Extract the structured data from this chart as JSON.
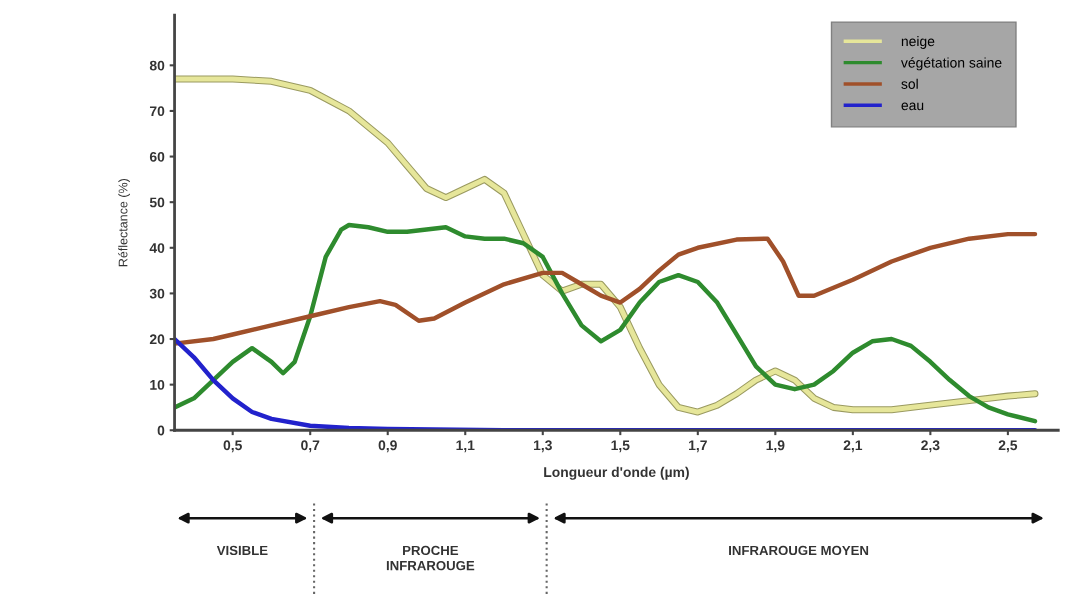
{
  "chart_data": {
    "type": "line",
    "xlabel": "Longueur d'onde (µm)",
    "ylabel": "Réflectance (%)",
    "xlim": [
      0.35,
      2.63
    ],
    "ylim": [
      0,
      91
    ],
    "xticks": [
      {
        "value": 0.5,
        "label": "0,5"
      },
      {
        "value": 0.7,
        "label": "0,7"
      },
      {
        "value": 0.9,
        "label": "0,9"
      },
      {
        "value": 1.1,
        "label": "1,1"
      },
      {
        "value": 1.3,
        "label": "1,3"
      },
      {
        "value": 1.5,
        "label": "1,5"
      },
      {
        "value": 1.7,
        "label": "1,7"
      },
      {
        "value": 1.9,
        "label": "1,9"
      },
      {
        "value": 2.1,
        "label": "2,1"
      },
      {
        "value": 2.3,
        "label": "2,3"
      },
      {
        "value": 2.5,
        "label": "2,5"
      }
    ],
    "yticks": [
      0,
      10,
      20,
      30,
      40,
      50,
      60,
      70,
      80
    ],
    "grid": false,
    "legend": "top right",
    "marker": "none",
    "line_style": "solid",
    "series": [
      {
        "name": "neige",
        "color": "#e6e69a",
        "x": [
          0.35,
          0.5,
          0.6,
          0.7,
          0.8,
          0.9,
          0.95,
          1.0,
          1.05,
          1.1,
          1.15,
          1.2,
          1.25,
          1.3,
          1.35,
          1.4,
          1.45,
          1.5,
          1.55,
          1.6,
          1.65,
          1.7,
          1.75,
          1.8,
          1.85,
          1.9,
          1.95,
          2.0,
          2.05,
          2.1,
          2.2,
          2.3,
          2.4,
          2.5,
          2.57
        ],
        "values": [
          77,
          77,
          76.5,
          74.5,
          70,
          63,
          58,
          53,
          51,
          53,
          55,
          52,
          43,
          34,
          30.5,
          32,
          32,
          27,
          18,
          10,
          5,
          4,
          5.5,
          8,
          11,
          13,
          11,
          7,
          5,
          4.5,
          4.5,
          5.5,
          6.5,
          7.5,
          8
        ]
      },
      {
        "name": "végétation saine",
        "color": "#2e8b2e",
        "x": [
          0.35,
          0.4,
          0.45,
          0.5,
          0.55,
          0.6,
          0.63,
          0.66,
          0.7,
          0.74,
          0.78,
          0.8,
          0.85,
          0.9,
          0.95,
          1.0,
          1.05,
          1.1,
          1.15,
          1.2,
          1.25,
          1.3,
          1.35,
          1.4,
          1.45,
          1.5,
          1.55,
          1.6,
          1.65,
          1.7,
          1.75,
          1.8,
          1.85,
          1.9,
          1.95,
          2.0,
          2.05,
          2.1,
          2.15,
          2.2,
          2.25,
          2.3,
          2.35,
          2.4,
          2.45,
          2.5,
          2.57
        ],
        "values": [
          5,
          7,
          11,
          15,
          18,
          15,
          12.5,
          15,
          25,
          38,
          44,
          45,
          44.5,
          43.5,
          43.5,
          44,
          44.5,
          42.5,
          42,
          42,
          41,
          38,
          30,
          23,
          19.5,
          22,
          28,
          32.5,
          34,
          32.5,
          28,
          21,
          14,
          10,
          9,
          10,
          13,
          17,
          19.5,
          20,
          18.5,
          15,
          11,
          7.5,
          5,
          3.5,
          2
        ]
      },
      {
        "name": "sol",
        "color": "#a0502a",
        "x": [
          0.35,
          0.45,
          0.5,
          0.6,
          0.7,
          0.8,
          0.88,
          0.92,
          0.98,
          1.02,
          1.1,
          1.2,
          1.3,
          1.35,
          1.4,
          1.45,
          1.5,
          1.55,
          1.6,
          1.65,
          1.7,
          1.8,
          1.88,
          1.92,
          1.96,
          2.0,
          2.1,
          2.2,
          2.3,
          2.4,
          2.5,
          2.57
        ],
        "values": [
          19,
          20,
          21,
          23,
          25,
          27,
          28.3,
          27.5,
          24,
          24.5,
          28,
          32,
          34.5,
          34.5,
          32,
          29.5,
          28,
          31,
          35,
          38.5,
          40,
          41.8,
          42,
          37,
          29.5,
          29.5,
          33,
          37,
          40,
          42,
          43,
          43
        ]
      },
      {
        "name": "eau",
        "color": "#2222cc",
        "x": [
          0.35,
          0.4,
          0.45,
          0.5,
          0.55,
          0.6,
          0.7,
          0.8,
          0.9,
          1.2,
          1.6,
          2.0,
          2.57
        ],
        "values": [
          20,
          16,
          11,
          7,
          4,
          2.5,
          1,
          0.5,
          0.3,
          0,
          0,
          0,
          0
        ]
      }
    ],
    "annotations": [
      "VISIBLE",
      "PROCHE\nINFRAROUGE",
      "INFRAROUGE MOYEN"
    ]
  }
}
